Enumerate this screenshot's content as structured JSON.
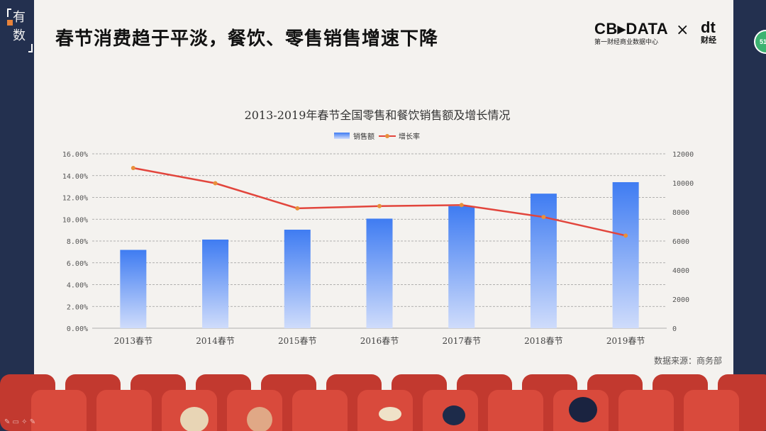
{
  "brand": {
    "line1": "有",
    "line2": "数"
  },
  "title": "春节消费趋于平淡，餐饮、零售销售增速下降",
  "logos": {
    "cbn": "CB▸DATA",
    "cbn_sub": "第一财经商业数据中心",
    "cross": "×",
    "dt": "dt",
    "dt_sub": "财经"
  },
  "badge": "51",
  "source": "数据来源：商务部",
  "chart_data": {
    "type": "bar",
    "title": "2013-2019年春节全国零售和餐饮销售额及增长情况",
    "categories": [
      "2013春节",
      "2014春节",
      "2015春节",
      "2016春节",
      "2017春节",
      "2018春节",
      "2019春节"
    ],
    "series": [
      {
        "name": "销售额",
        "type": "bar",
        "axis": "right",
        "values": [
          5390,
          6100,
          6780,
          7540,
          8400,
          9260,
          10050
        ]
      },
      {
        "name": "增长率",
        "type": "line",
        "axis": "left",
        "values": [
          14.7,
          13.3,
          11.0,
          11.2,
          11.3,
          10.2,
          8.5
        ]
      }
    ],
    "left_axis": {
      "min": 0,
      "max": 16,
      "ticks": [
        "0.00%",
        "2.00%",
        "4.00%",
        "6.00%",
        "8.00%",
        "10.00%",
        "12.00%",
        "14.00%",
        "16.00%"
      ]
    },
    "right_axis": {
      "min": 0,
      "max": 12000,
      "ticks": [
        "0",
        "2000",
        "4000",
        "6000",
        "8000",
        "10000",
        "12000"
      ]
    },
    "legend_position": "top-center",
    "grid": true,
    "colors": {
      "bar_top": "#3f7cf2",
      "bar_bottom": "#c9d8fb",
      "line": "#e2453c",
      "marker": "#e8903a"
    }
  }
}
